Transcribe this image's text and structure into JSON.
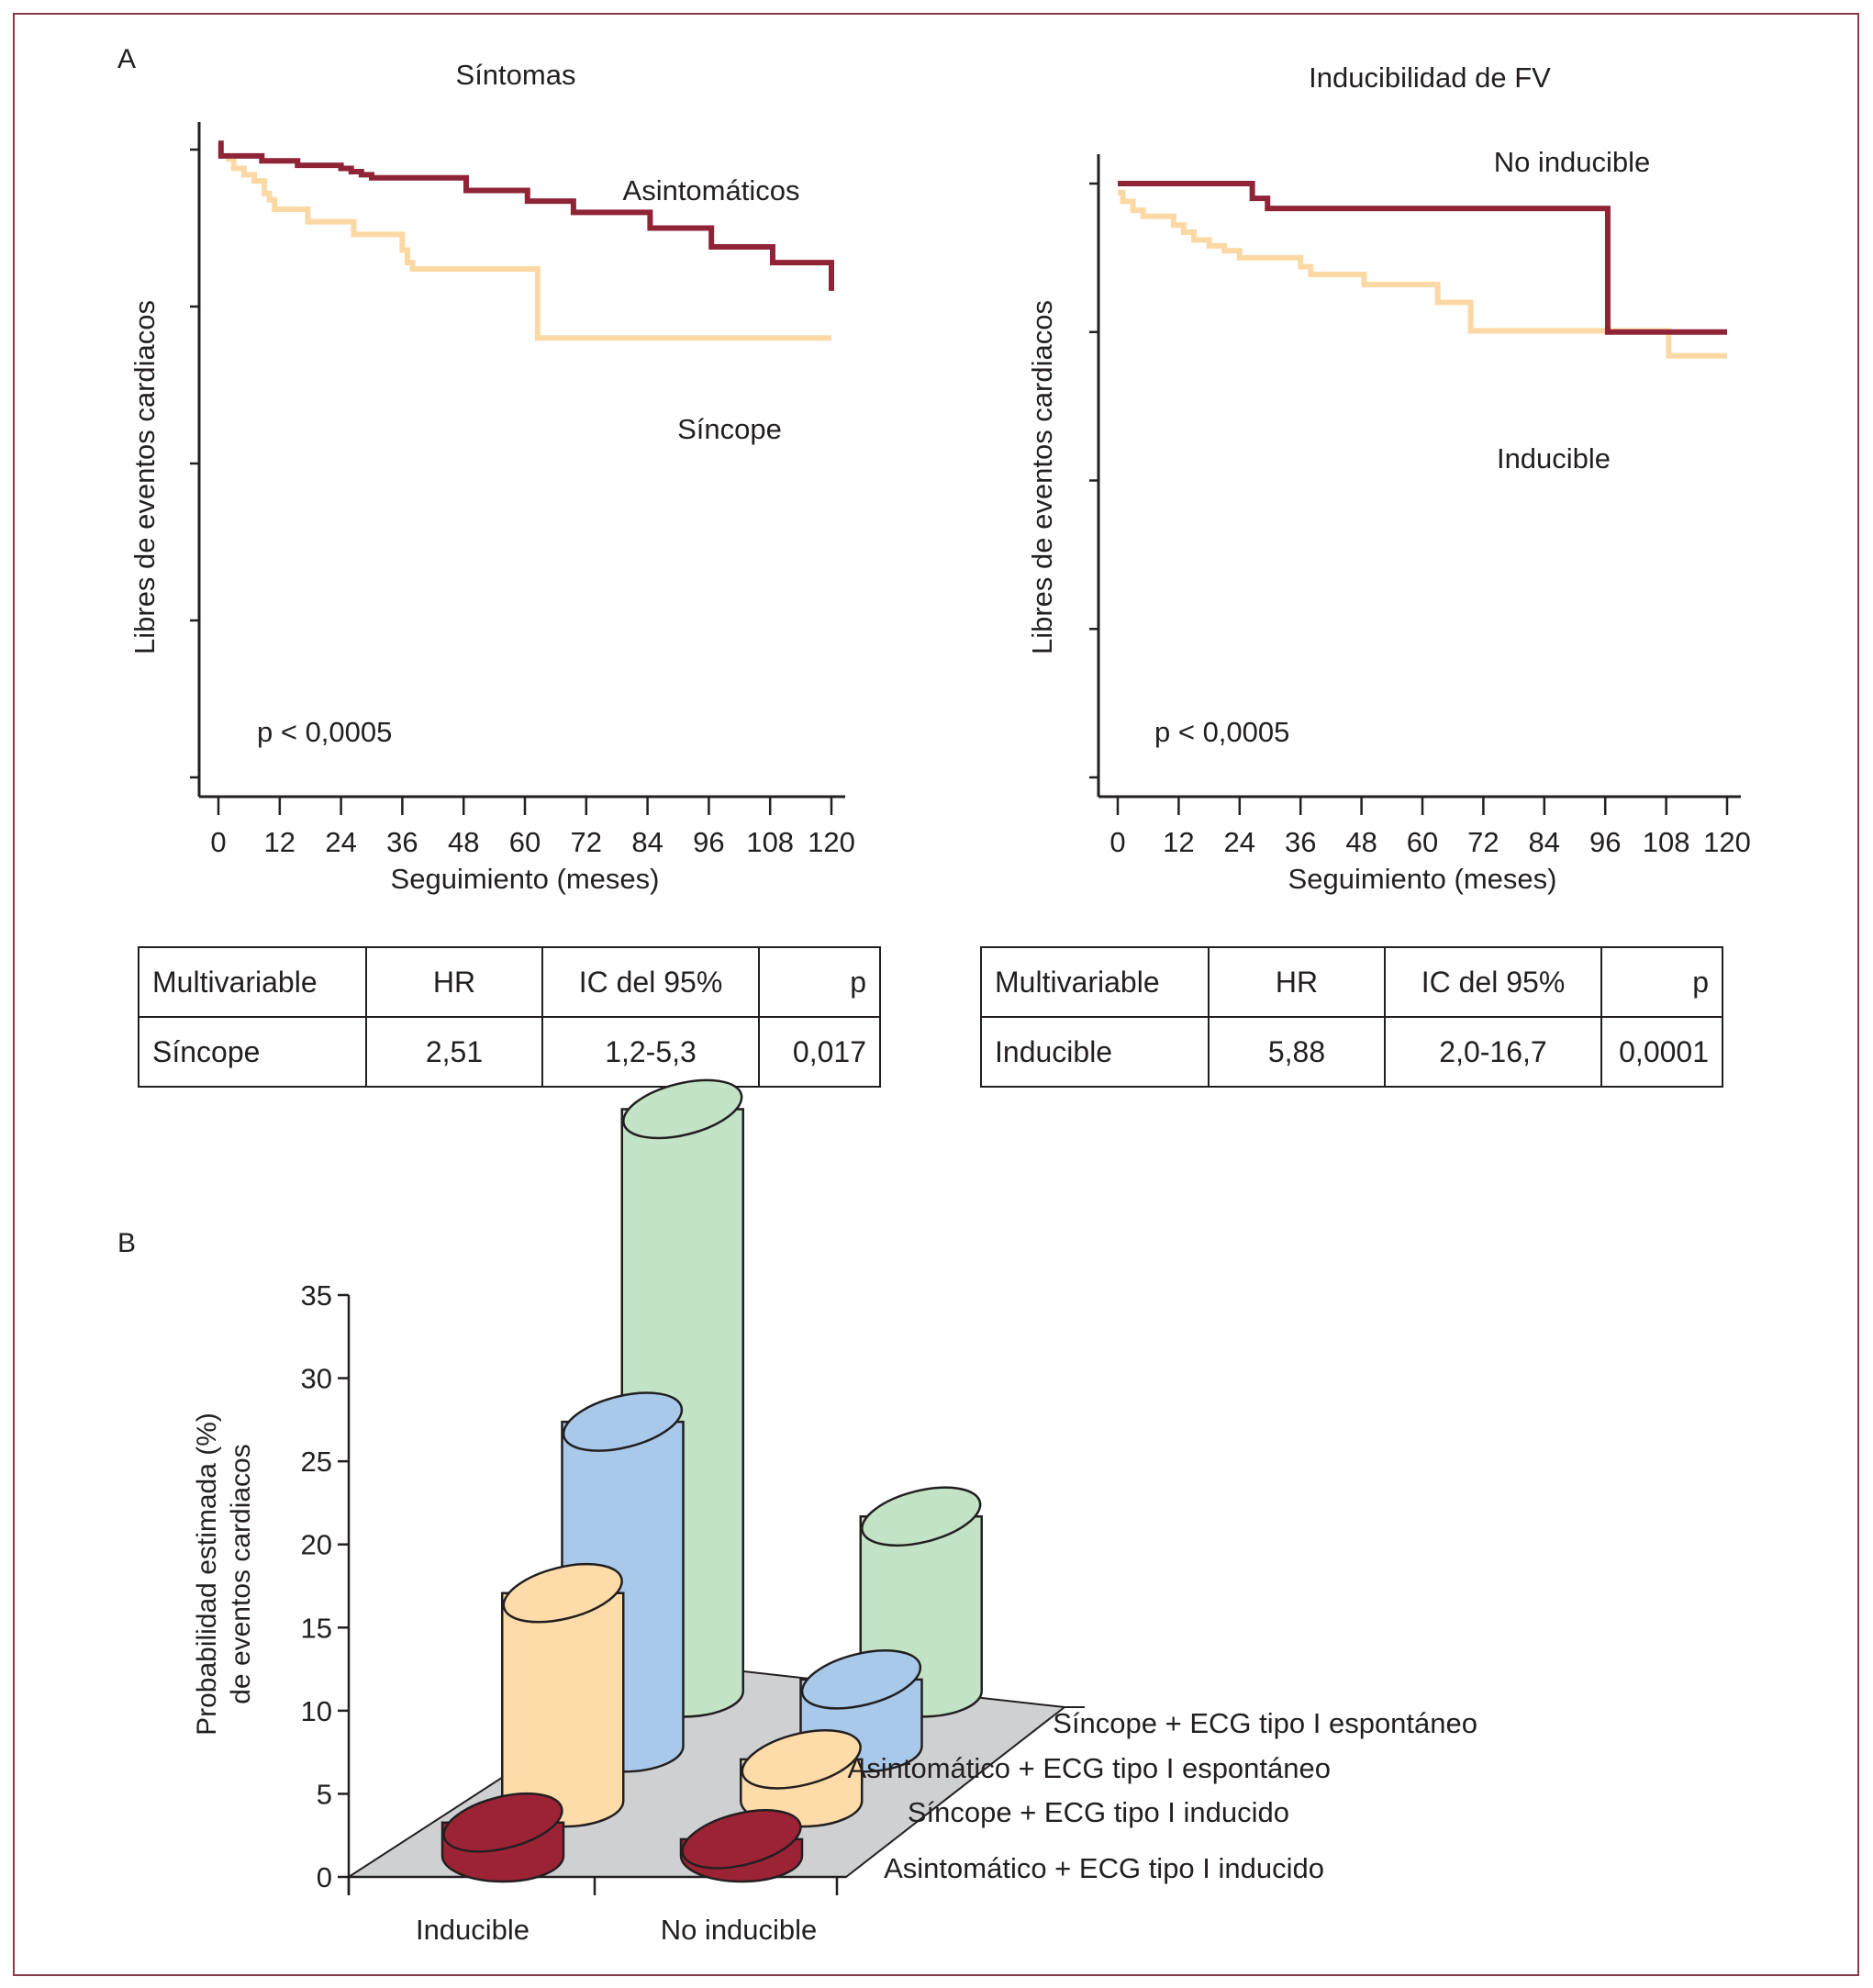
{
  "figure": {
    "panel_a_label": "A",
    "panel_b_label": "B",
    "frame_color": "#8b3a4a"
  },
  "colors": {
    "dark_red": "#8f2437",
    "light_orange": "#fcd9a4",
    "bar_red": "#9b2335",
    "bar_orange": "#fddcaa",
    "bar_blue": "#a9c9ea",
    "bar_green": "#c3e3c6",
    "floor_gray": "#cfd0d2"
  },
  "chart_data": [
    {
      "type": "line",
      "subtype": "kaplan-meier step",
      "title": "Síntomas",
      "xlabel": "Seguimiento (meses)",
      "ylabel": "Libres de eventos cardiacos",
      "x_ticks": [
        "0",
        "12",
        "24",
        "36",
        "48",
        "60",
        "72",
        "84",
        "96",
        "108",
        "120"
      ],
      "xlim": [
        0,
        120
      ],
      "y_ticks_count": 5,
      "y_tick_labels": [],
      "y_units": "relative (1.0 = top tick, 0.0 = bottom tick; tick labels not shown)",
      "annotation": "p < 0,0005",
      "series": [
        {
          "name": "Asintomáticos",
          "color_key": "dark_red",
          "steps": [
            [
              0,
              1.01
            ],
            [
              0.5,
              0.99
            ],
            [
              8,
              0.99
            ],
            [
              8.5,
              0.982
            ],
            [
              15,
              0.982
            ],
            [
              15.5,
              0.975
            ],
            [
              23,
              0.975
            ],
            [
              24,
              0.97
            ],
            [
              26,
              0.965
            ],
            [
              28,
              0.96
            ],
            [
              30,
              0.955
            ],
            [
              48,
              0.955
            ],
            [
              48.5,
              0.935
            ],
            [
              60,
              0.935
            ],
            [
              60.5,
              0.918
            ],
            [
              69,
              0.918
            ],
            [
              69.5,
              0.9
            ],
            [
              84,
              0.9
            ],
            [
              84.5,
              0.875
            ],
            [
              96,
              0.875
            ],
            [
              96.5,
              0.845
            ],
            [
              108,
              0.845
            ],
            [
              108.5,
              0.82
            ],
            [
              120,
              0.82
            ],
            [
              120,
              0.775
            ]
          ]
        },
        {
          "name": "Síncope",
          "color_key": "light_orange",
          "steps": [
            [
              0,
              0.99
            ],
            [
              2,
              0.985
            ],
            [
              3,
              0.97
            ],
            [
              5,
              0.96
            ],
            [
              7,
              0.95
            ],
            [
              9,
              0.93
            ],
            [
              10,
              0.92
            ],
            [
              11,
              0.905
            ],
            [
              17,
              0.905
            ],
            [
              17.5,
              0.885
            ],
            [
              26,
              0.885
            ],
            [
              26.5,
              0.865
            ],
            [
              35,
              0.865
            ],
            [
              36,
              0.84
            ],
            [
              37,
              0.82
            ],
            [
              38,
              0.81
            ],
            [
              62,
              0.81
            ],
            [
              62.5,
              0.7
            ],
            [
              120,
              0.7
            ]
          ]
        }
      ],
      "table": {
        "headers": [
          "Multivariable",
          "HR",
          "IC del 95%",
          "p"
        ],
        "rows": [
          [
            "Síncope",
            "2,51",
            "1,2-5,3",
            "0,017"
          ]
        ]
      }
    },
    {
      "type": "line",
      "subtype": "kaplan-meier step",
      "title": "Inducibilidad de FV",
      "xlabel": "Seguimiento (meses)",
      "ylabel": "Libres de eventos cardiacos",
      "x_ticks": [
        "0",
        "12",
        "24",
        "36",
        "48",
        "60",
        "72",
        "84",
        "96",
        "108",
        "120"
      ],
      "xlim": [
        0,
        120
      ],
      "y_ticks_count": 5,
      "y_tick_labels": [],
      "y_units": "relative (1.0 = top tick, 0.0 = bottom tick; tick labels not shown)",
      "annotation": "p < 0,0005",
      "series": [
        {
          "name": "No inducible",
          "color_key": "dark_red",
          "steps": [
            [
              0,
              1.0
            ],
            [
              26,
              1.0
            ],
            [
              26.5,
              0.975
            ],
            [
              29,
              0.975
            ],
            [
              29.5,
              0.958
            ],
            [
              96,
              0.958
            ],
            [
              96.5,
              0.75
            ],
            [
              120,
              0.75
            ]
          ]
        },
        {
          "name": "Inducible",
          "color_key": "light_orange",
          "steps": [
            [
              0,
              0.985
            ],
            [
              1,
              0.97
            ],
            [
              3,
              0.955
            ],
            [
              5,
              0.945
            ],
            [
              10,
              0.945
            ],
            [
              11,
              0.93
            ],
            [
              13,
              0.918
            ],
            [
              15,
              0.905
            ],
            [
              18,
              0.895
            ],
            [
              21,
              0.887
            ],
            [
              24,
              0.875
            ],
            [
              34,
              0.875
            ],
            [
              36,
              0.86
            ],
            [
              38,
              0.847
            ],
            [
              48,
              0.847
            ],
            [
              48.5,
              0.83
            ],
            [
              62,
              0.83
            ],
            [
              63,
              0.8
            ],
            [
              69,
              0.8
            ],
            [
              69.5,
              0.752
            ],
            [
              108,
              0.752
            ],
            [
              108.5,
              0.71
            ],
            [
              120,
              0.71
            ]
          ]
        }
      ],
      "table": {
        "headers": [
          "Multivariable",
          "HR",
          "IC del 95%",
          "p"
        ],
        "rows": [
          [
            "Inducible",
            "5,88",
            "2,0-16,7",
            "0,0001"
          ]
        ]
      }
    },
    {
      "type": "bar",
      "subtype": "3d cylinder",
      "title": "",
      "ylabel": "Probabilidad estimada (%) de eventos cardiacos",
      "ylabel_lines": [
        "Probabilidad estimada (%)",
        "de eventos cardiacos"
      ],
      "ylim": [
        0,
        35
      ],
      "y_ticks": [
        "0",
        "5",
        "10",
        "15",
        "20",
        "25",
        "30",
        "35"
      ],
      "categories": [
        "Inducible",
        "No inducible"
      ],
      "series": [
        {
          "name": "Asintomático + ECG tipo I inducido",
          "color_key": "bar_red",
          "values": [
            2.0,
            1.0
          ]
        },
        {
          "name": "Síncope + ECG tipo I inducido",
          "color_key": "bar_orange",
          "values": [
            12.5,
            2.5
          ]
        },
        {
          "name": "Asintomático + ECG tipo I espontáneo",
          "color_key": "bar_blue",
          "values": [
            19.5,
            4.0
          ]
        },
        {
          "name": "Síncope + ECG tipo I espontáneo",
          "color_key": "bar_green",
          "values": [
            35.0,
            10.5
          ]
        }
      ]
    }
  ]
}
